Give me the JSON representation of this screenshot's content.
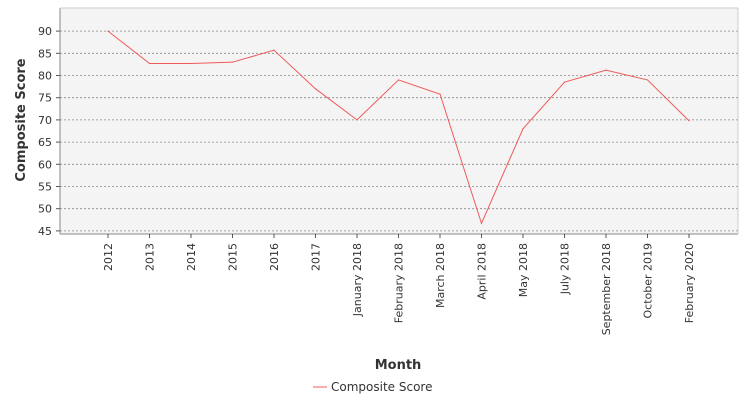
{
  "chart_data": {
    "type": "line",
    "title": "",
    "xlabel": "Month",
    "ylabel": "Composite Score",
    "categories": [
      "2012",
      "2013",
      "2014",
      "2015",
      "2016",
      "2017",
      "January 2018",
      "February 2018",
      "March 2018",
      "April 2018",
      "May 2018",
      "July 2018",
      "September 2018",
      "October 2019",
      "February 2020"
    ],
    "series": [
      {
        "name": "Composite Score",
        "color": "#f05a5a",
        "values": [
          90,
          82.7,
          82.7,
          83,
          85.7,
          77,
          70,
          79,
          75.8,
          46.7,
          68,
          78.5,
          81.2,
          79,
          69.8
        ]
      }
    ],
    "yticks": [
      45,
      50,
      55,
      60,
      65,
      70,
      75,
      80,
      85,
      90
    ],
    "ylim": [
      44.3,
      95.2
    ],
    "grid": true,
    "legend": "bottom-center",
    "plot_background": "#f4f4f4",
    "grid_color": "#888888"
  }
}
